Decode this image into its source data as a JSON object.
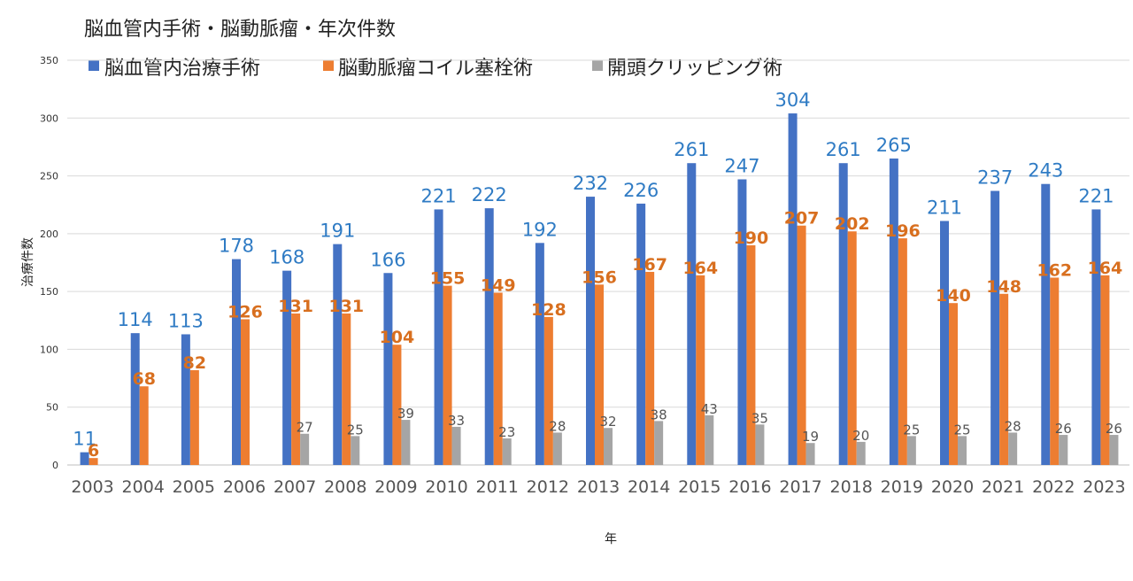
{
  "chart_data": {
    "type": "bar",
    "title": "脳血管内手術・脳動脈瘤・年次件数",
    "xlabel": "年",
    "ylabel": "治療件数",
    "ylim": [
      0,
      350
    ],
    "yticks": [
      0,
      50,
      100,
      150,
      200,
      250,
      300,
      350
    ],
    "grid": true,
    "legend_position": "top",
    "categories": [
      "2003",
      "2004",
      "2005",
      "2006",
      "2007",
      "2008",
      "2009",
      "2010",
      "2011",
      "2012",
      "2013",
      "2014",
      "2015",
      "2016",
      "2017",
      "2018",
      "2019",
      "2020",
      "2021",
      "2022",
      "2023"
    ],
    "series": [
      {
        "name": "脳血管内治療手術",
        "color": "#4472c4",
        "label_color": "#2f7bc4",
        "values": [
          11,
          114,
          113,
          178,
          168,
          191,
          166,
          221,
          222,
          192,
          232,
          226,
          261,
          247,
          304,
          261,
          265,
          211,
          237,
          243,
          221
        ]
      },
      {
        "name": "脳動脈瘤コイル塞栓術",
        "color": "#ed7d31",
        "label_color": "#d86f1f",
        "values": [
          6,
          68,
          82,
          126,
          131,
          131,
          104,
          155,
          149,
          128,
          156,
          167,
          164,
          190,
          207,
          202,
          196,
          140,
          148,
          162,
          164
        ]
      },
      {
        "name": "開頭クリッピング術",
        "color": "#a5a5a5",
        "label_color": "#555555",
        "values": [
          null,
          null,
          null,
          null,
          27,
          25,
          39,
          33,
          23,
          28,
          32,
          38,
          43,
          35,
          19,
          20,
          25,
          25,
          28,
          26,
          26
        ]
      }
    ]
  }
}
